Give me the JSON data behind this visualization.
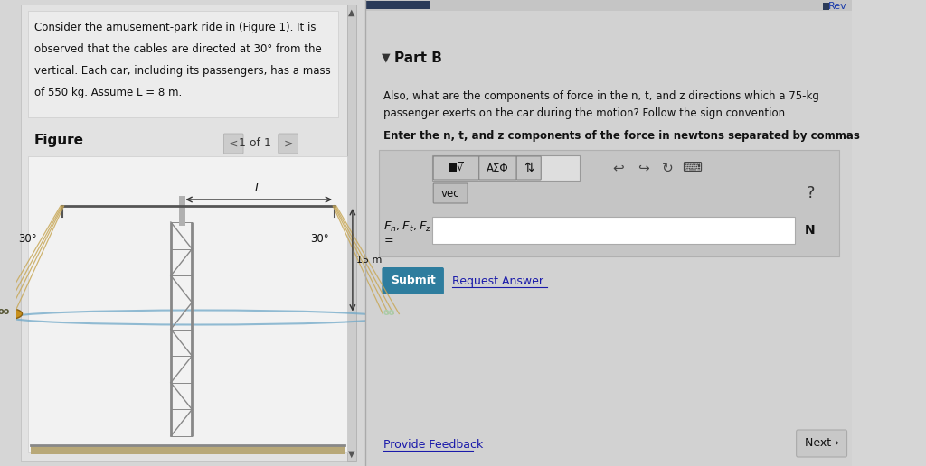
{
  "bg_color": "#d6d6d6",
  "problem_text_lines": [
    "Consider the amusement-park ride in (Figure 1). It is",
    "observed that the cables are directed at 30° from the",
    "vertical. Each car, including its passengers, has a mass",
    "of 550 kg. Assume L = 8 m."
  ],
  "figure_label": "Figure",
  "figure_nav": "1 of 1",
  "angle_label": "30°",
  "length_label": "15 m",
  "L_label": "L",
  "part_b_label": "Part B",
  "part_b_triangle": "▼",
  "question_line1": "Also, what are the components of force in the n, t, and z directions which a 75-kg",
  "question_line2": "passenger exerts on the car during the motion? Follow the sign convention.",
  "enter_label": "Enter the n, t, and z components of the force in newtons separated by commas",
  "N_label": "N",
  "submit_text": "Submit",
  "request_answer_text": "Request Answer",
  "provide_feedback_text": "Provide Feedback",
  "next_text": "Next ›",
  "rev_text": "Rev",
  "vec_text": "vec",
  "question_mark": "?",
  "submit_bg": "#2e7d9e",
  "submit_text_color": "#ffffff"
}
